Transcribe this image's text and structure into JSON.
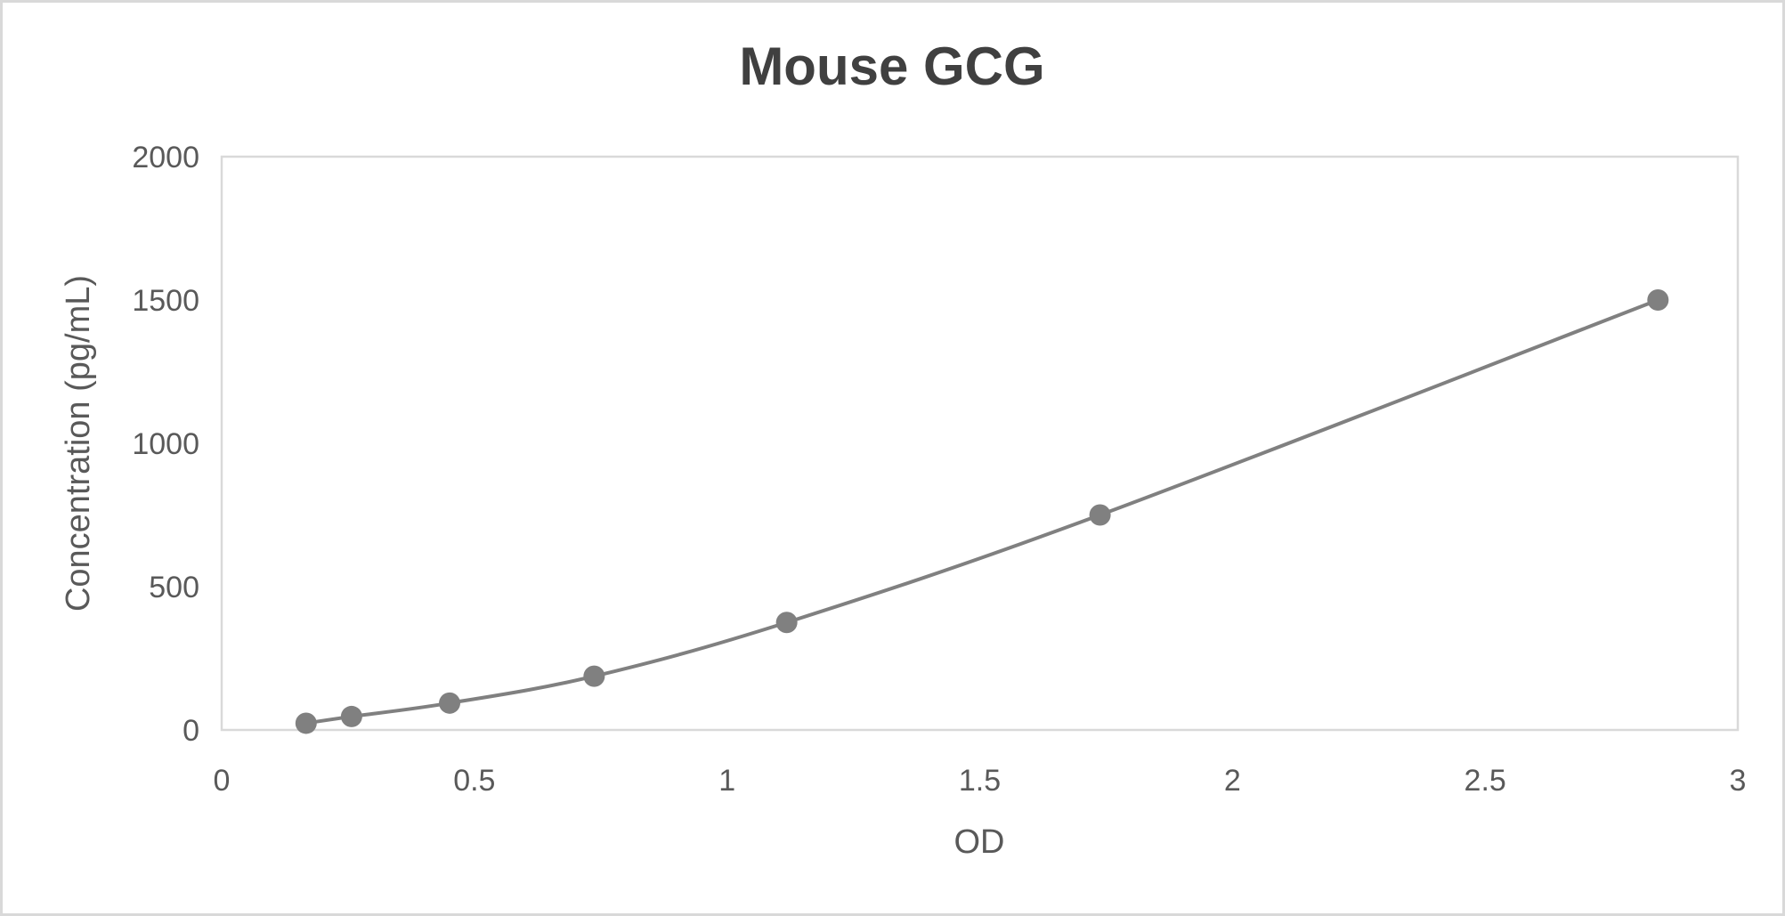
{
  "chart_data": {
    "type": "scatter",
    "title": "Mouse GCG",
    "xlabel": "OD",
    "ylabel": "Concentration (pg/mL)",
    "xlim": [
      0,
      3
    ],
    "ylim": [
      0,
      2000
    ],
    "xticks": [
      "0",
      "0.5",
      "1",
      "1.5",
      "2",
      "2.5",
      "3"
    ],
    "yticks": [
      "0",
      "500",
      "1000",
      "1500",
      "2000"
    ],
    "grid": false,
    "legend": "none",
    "smooth_line": true,
    "color": "#808080",
    "series": [
      {
        "x": [
          0.167,
          0.257,
          0.451,
          0.737,
          1.118,
          1.738,
          2.842
        ],
        "y": [
          23.44,
          46.88,
          93.75,
          187.5,
          375,
          750,
          1500
        ]
      }
    ]
  }
}
